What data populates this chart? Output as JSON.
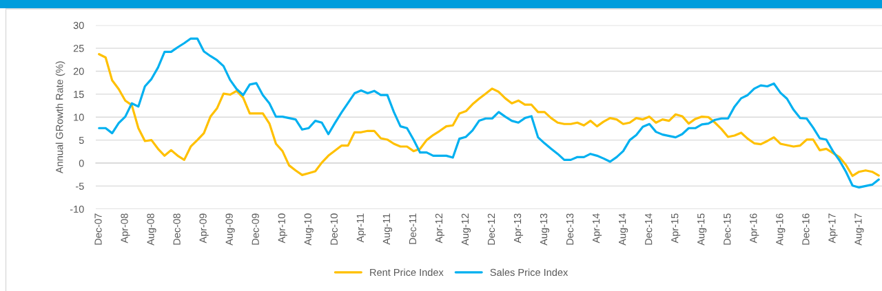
{
  "chart_data": {
    "type": "line",
    "ylabel": "Annual GRowth Rate (%)",
    "categories": [
      "Dec-07",
      null,
      null,
      null,
      "Apr-08",
      null,
      null,
      null,
      "Aug-08",
      null,
      null,
      null,
      "Dec-08",
      null,
      null,
      null,
      "Apr-09",
      null,
      null,
      null,
      "Aug-09",
      null,
      null,
      null,
      "Dec-09",
      null,
      null,
      null,
      "Apr-10",
      null,
      null,
      null,
      "Aug-10",
      null,
      null,
      null,
      "Dec-10",
      null,
      null,
      null,
      "Apr-11",
      null,
      null,
      null,
      "Aug-11",
      null,
      null,
      null,
      "Dec-11",
      null,
      null,
      null,
      "Apr-12",
      null,
      null,
      null,
      "Aug-12",
      null,
      null,
      null,
      "Dec-12",
      null,
      null,
      null,
      "Apr-13",
      null,
      null,
      null,
      "Aug-13",
      null,
      null,
      null,
      "Dec-13",
      null,
      null,
      null,
      "Apr-14",
      null,
      null,
      null,
      "Aug-14",
      null,
      null,
      null,
      "Dec-14",
      null,
      null,
      null,
      "Apr-15",
      null,
      null,
      null,
      "Aug-15",
      null,
      null,
      null,
      "Dec-15",
      null,
      null,
      null,
      "Apr-16",
      null,
      null,
      null,
      "Aug-16",
      null,
      null,
      null,
      "Dec-16",
      null,
      null,
      null,
      "Apr-17",
      null,
      null,
      null,
      "Aug-17",
      null,
      null,
      null
    ],
    "series": [
      {
        "name": "Rent Price Index",
        "color": "#ffc000",
        "values": [
          23.7,
          23.0,
          18.0,
          16.1,
          13.6,
          12.6,
          7.6,
          4.8,
          5.0,
          3.1,
          1.6,
          2.8,
          1.6,
          0.7,
          3.6,
          5.0,
          6.5,
          10.1,
          11.9,
          15.1,
          14.9,
          15.7,
          14.2,
          10.8,
          10.8,
          10.8,
          8.6,
          4.2,
          2.6,
          -0.5,
          -1.6,
          -2.6,
          -2.2,
          -1.8,
          0.1,
          1.6,
          2.7,
          3.8,
          3.8,
          6.7,
          6.7,
          7.0,
          7.0,
          5.4,
          5.1,
          4.2,
          3.6,
          3.6,
          2.6,
          3.1,
          5.0,
          6.1,
          7.0,
          8.0,
          8.2,
          10.8,
          11.3,
          12.8,
          14.0,
          15.1,
          16.2,
          15.5,
          14.1,
          13.0,
          13.6,
          12.7,
          12.7,
          11.1,
          11.1,
          9.8,
          8.8,
          8.5,
          8.5,
          8.8,
          8.2,
          9.2,
          8.0,
          9.0,
          9.8,
          9.5,
          8.5,
          8.8,
          9.8,
          9.5,
          10.1,
          8.8,
          9.5,
          9.2,
          10.6,
          10.2,
          8.6,
          9.6,
          10.1,
          10.0,
          8.8,
          7.4,
          5.7,
          6.0,
          6.6,
          5.3,
          4.3,
          4.1,
          4.8,
          5.6,
          4.2,
          3.9,
          3.6,
          3.8,
          5.1,
          5.1,
          2.8,
          3.1,
          2.2,
          1.3,
          -0.4,
          -2.8,
          -1.9,
          -1.6,
          -1.9,
          -2.7
        ]
      },
      {
        "name": "Sales Price Index",
        "color": "#00b0f0",
        "values": [
          7.6,
          7.6,
          6.5,
          8.7,
          10.1,
          13.0,
          12.3,
          16.7,
          18.3,
          20.8,
          24.2,
          24.2,
          25.2,
          26.1,
          27.1,
          27.1,
          24.3,
          23.3,
          22.4,
          21.1,
          18.1,
          16.1,
          14.8,
          17.1,
          17.4,
          14.8,
          13.0,
          10.1,
          10.1,
          9.8,
          9.5,
          7.3,
          7.6,
          9.2,
          8.8,
          6.3,
          8.7,
          11.0,
          13.1,
          15.2,
          15.8,
          15.2,
          15.7,
          14.8,
          14.8,
          11.1,
          8.0,
          7.6,
          5.1,
          2.3,
          2.3,
          1.6,
          1.6,
          1.6,
          1.2,
          5.3,
          5.7,
          7.1,
          9.2,
          9.7,
          9.7,
          11.1,
          10.1,
          9.2,
          8.8,
          9.8,
          10.2,
          5.6,
          4.3,
          3.1,
          2.0,
          0.7,
          0.7,
          1.3,
          1.3,
          2.0,
          1.6,
          1.0,
          0.3,
          1.3,
          2.6,
          5.0,
          6.1,
          7.9,
          8.5,
          6.8,
          6.2,
          5.9,
          5.6,
          6.3,
          7.6,
          7.6,
          8.4,
          8.6,
          9.4,
          9.7,
          9.7,
          12.3,
          14.1,
          14.8,
          16.2,
          16.9,
          16.7,
          17.3,
          15.3,
          14.0,
          11.6,
          9.8,
          9.7,
          7.7,
          5.4,
          5.1,
          2.6,
          0.6,
          -1.9,
          -4.9,
          -5.3,
          -5.0,
          -4.7,
          -3.6
        ]
      }
    ],
    "ylim": [
      -10,
      30
    ],
    "yticks": [
      -10,
      -5,
      0,
      5,
      10,
      15,
      20,
      25,
      30
    ],
    "grid": "y",
    "legend": "bottom",
    "line_style": "solid"
  }
}
